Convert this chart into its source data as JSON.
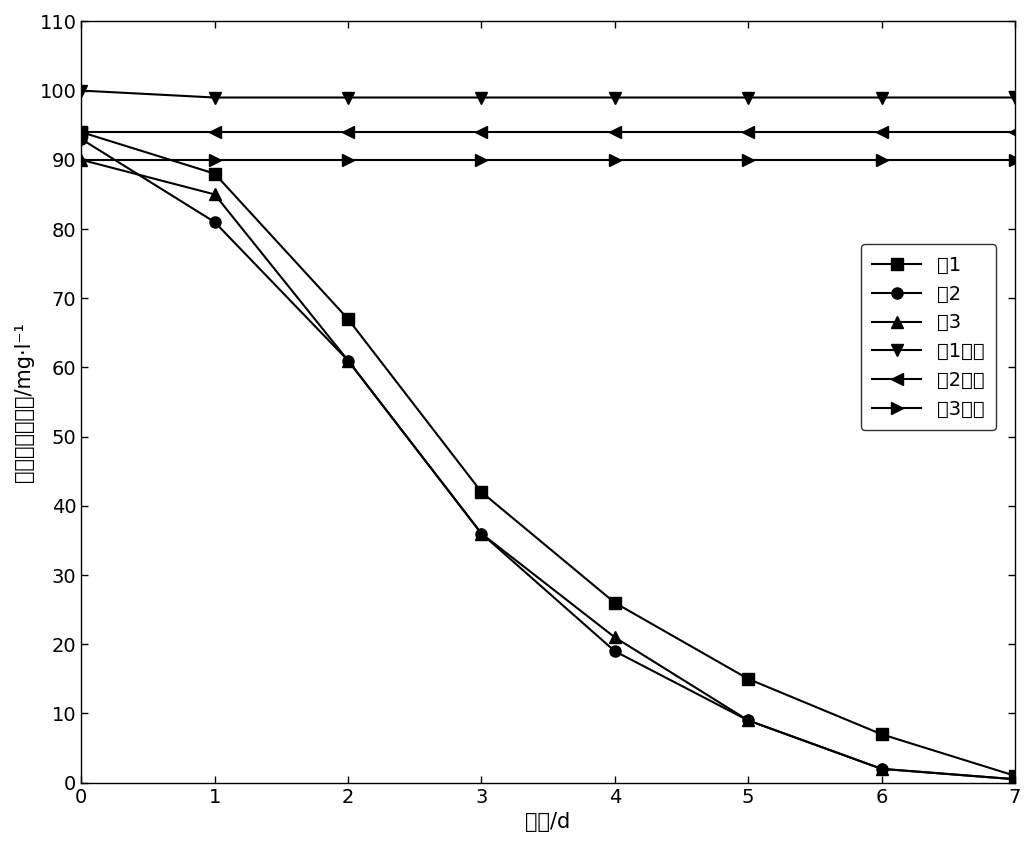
{
  "x": [
    0,
    1,
    2,
    3,
    4,
    5,
    6,
    7
  ],
  "li1": [
    94,
    88,
    67,
    42,
    26,
    15,
    7,
    1
  ],
  "li2": [
    93,
    81,
    61,
    36,
    19,
    9,
    2,
    0.5
  ],
  "li3": [
    90,
    85,
    61,
    36,
    21,
    9,
    2,
    0.5
  ],
  "li1_control": [
    100,
    99,
    99,
    99,
    99,
    99,
    99,
    99
  ],
  "li2_control": [
    94,
    94,
    94,
    94,
    94,
    94,
    94,
    94
  ],
  "li3_control": [
    90,
    90,
    90,
    90,
    90,
    90,
    90,
    90
  ],
  "xlabel": "时间/d",
  "ylabel": "亚疄酸盐氮含量/mg·l⁻¹",
  "legend_labels": [
    "例1",
    "例2",
    "例3",
    "例1对照",
    "例2对照",
    "例3对照"
  ],
  "xlim": [
    0,
    7
  ],
  "ylim": [
    0,
    110
  ],
  "yticks": [
    0,
    10,
    20,
    30,
    40,
    50,
    60,
    70,
    80,
    90,
    100,
    110
  ],
  "xticks": [
    0,
    1,
    2,
    3,
    4,
    5,
    6,
    7
  ],
  "color": "#000000",
  "label_fontsize": 15,
  "legend_fontsize": 14,
  "tick_fontsize": 14,
  "figsize": [
    10.35,
    8.46
  ],
  "dpi": 100
}
